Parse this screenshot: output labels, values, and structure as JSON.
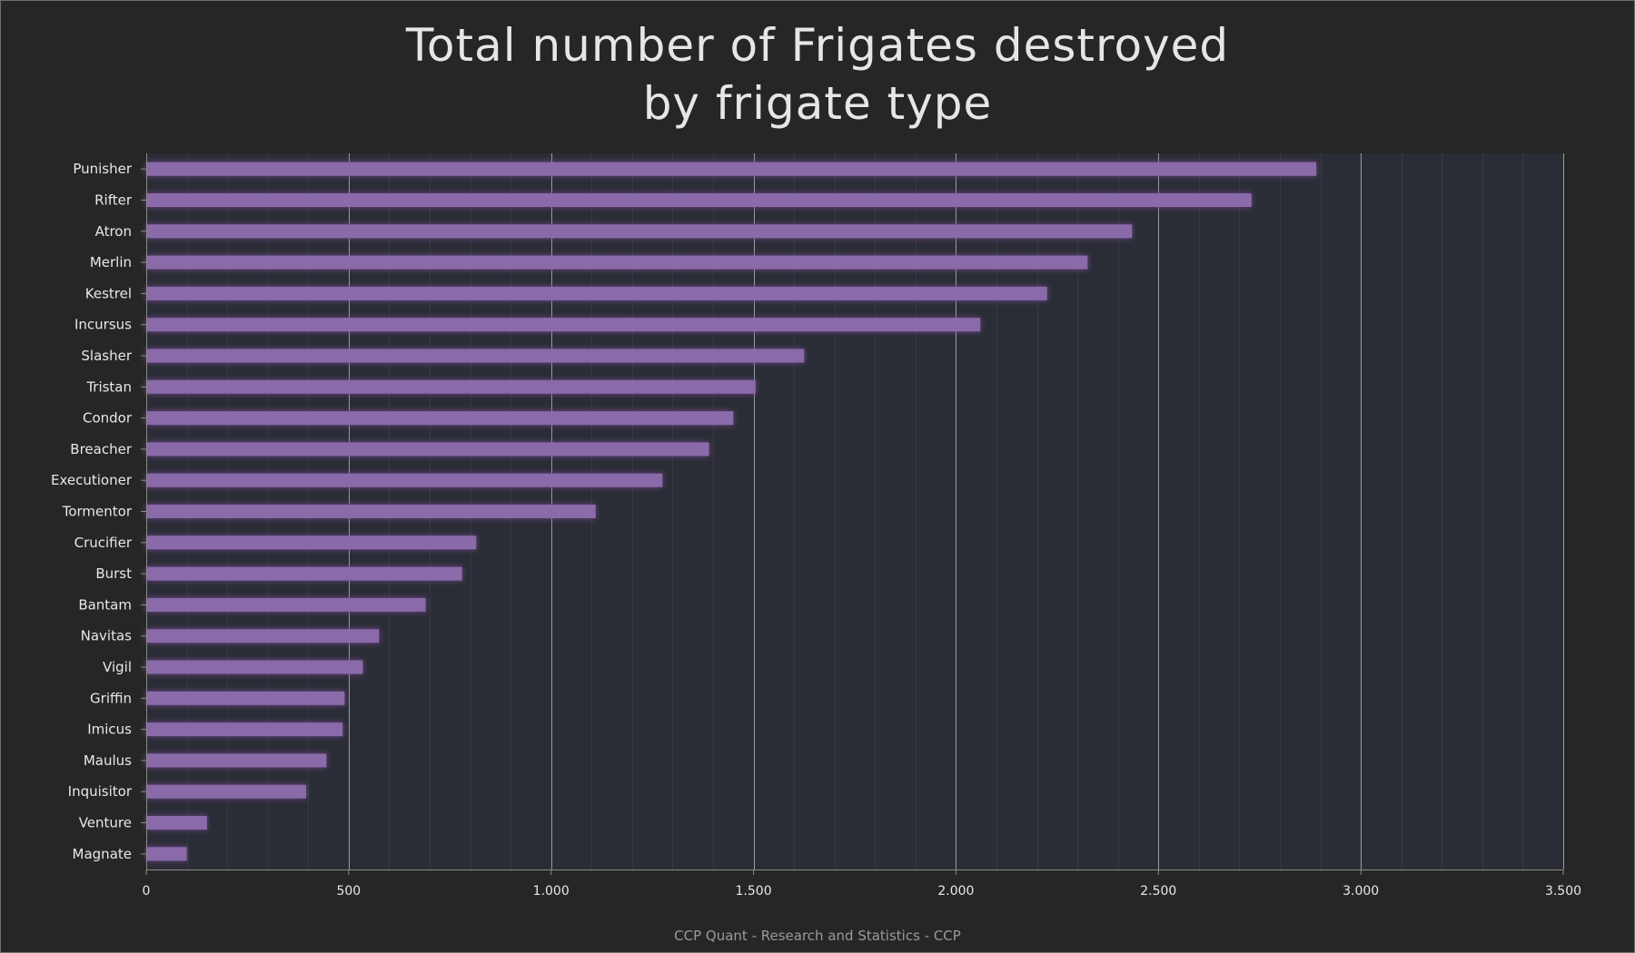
{
  "chart_data": {
    "type": "bar",
    "orientation": "horizontal",
    "title_lines": [
      "Total number of Frigates destroyed",
      "by frigate type"
    ],
    "categories": [
      "Punisher",
      "Rifter",
      "Atron",
      "Merlin",
      "Kestrel",
      "Incursus",
      "Slasher",
      "Tristan",
      "Condor",
      "Breacher",
      "Executioner",
      "Tormentor",
      "Crucifier",
      "Burst",
      "Bantam",
      "Navitas",
      "Vigil",
      "Griffin",
      "Imicus",
      "Maulus",
      "Inquisitor",
      "Venture",
      "Magnate"
    ],
    "values": [
      2890,
      2730,
      2435,
      2325,
      2225,
      2060,
      1625,
      1505,
      1450,
      1390,
      1275,
      1110,
      815,
      780,
      690,
      575,
      535,
      490,
      485,
      445,
      395,
      150,
      100
    ],
    "xlim": [
      0,
      3500
    ],
    "x_ticks": [
      0,
      500,
      1000,
      1500,
      2000,
      2500,
      3000,
      3500
    ],
    "x_tick_labels": [
      "0",
      "500",
      "1.000",
      "1.500",
      "2.000",
      "2.500",
      "3.000",
      "3.500"
    ],
    "grid": true,
    "legend": "none",
    "colors": {
      "bar": "#8a6aa8",
      "bar_glow": "#7a4a9a",
      "plot_bg": "#2a2d35",
      "major_grid": "#9a9ca4",
      "minor_grid": "#353944",
      "axis": "#8a8a8a"
    }
  },
  "credit": "CCP Quant - Research and Statistics - CCP"
}
